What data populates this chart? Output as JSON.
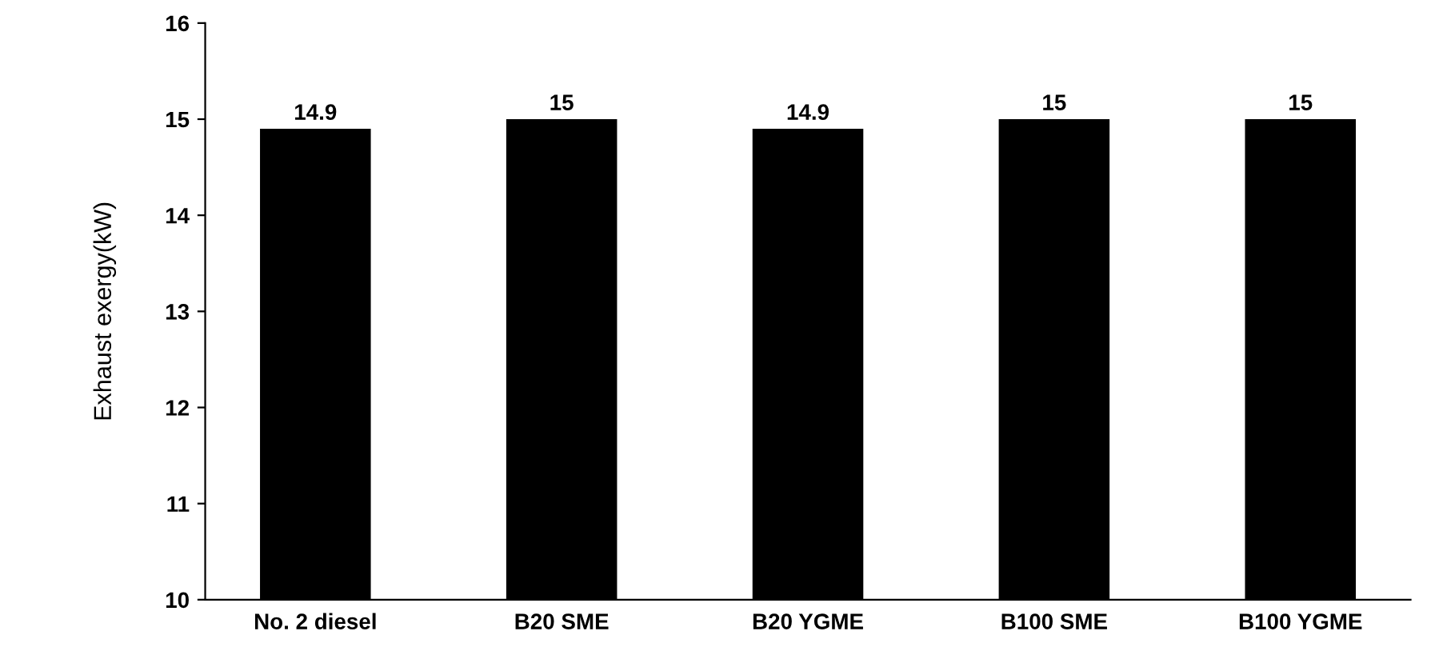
{
  "chart_data": {
    "type": "bar",
    "ylabel": "Exhaust exergy(kW)",
    "categories": [
      "No. 2 diesel",
      "B20 SME",
      "B20 YGME",
      "B100 SME",
      "B100 YGME"
    ],
    "values": [
      14.9,
      15,
      14.9,
      15,
      15
    ],
    "color": "#000000",
    "ylim": [
      10,
      16
    ],
    "yticks": [
      10,
      11,
      12,
      13,
      14,
      15,
      16
    ],
    "grid": false,
    "data_labels": true
  }
}
